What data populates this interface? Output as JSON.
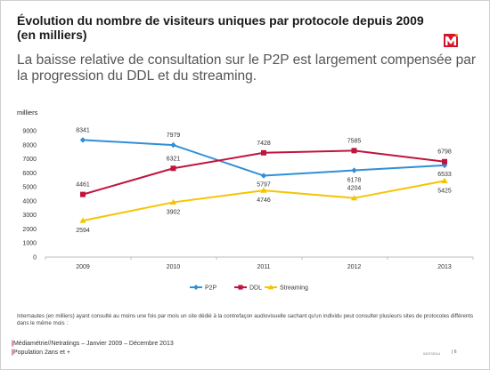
{
  "slide": {
    "title": "Évolution du nombre de visiteurs uniques par protocole depuis 2009 (en milliers)",
    "subtitle": "La baisse relative de consultation sur le P2P est largement compensée par la progression du DDL et du streaming.",
    "note": "Internautes (en milliers) ayant consulté au moins une fois par mois un site dédié à la contrefaçon audiovisuelle sachant qu'un individu peut consulter plusieurs sites de protocoles différents dans le même mois :",
    "source_line1": "Médiamétrie//Netratings – Janvier 2009 – Décembre 2013",
    "source_line2": "Population 2ans et +",
    "footer_code": "0207/2014",
    "page_number": "6",
    "colors": {
      "accent": "#c0143c"
    }
  },
  "chart_data": {
    "type": "line",
    "ylabel": "milliers",
    "categories": [
      "2009",
      "2010",
      "2011",
      "2012",
      "2013"
    ],
    "ylim": [
      0,
      9000
    ],
    "yticks": [
      0,
      1000,
      2000,
      3000,
      4000,
      5000,
      6000,
      7000,
      8000,
      9000
    ],
    "grid": false,
    "legend_position": "bottom",
    "series": [
      {
        "name": "P2P",
        "color": "#2f8fd8",
        "marker": "diamond",
        "values": [
          8341,
          7979,
          5797,
          6178,
          6533
        ]
      },
      {
        "name": "DDL",
        "color": "#c0143c",
        "marker": "square",
        "values": [
          4461,
          6321,
          7428,
          7585,
          6798
        ]
      },
      {
        "name": "Streaming",
        "color": "#f5c400",
        "marker": "triangle",
        "values": [
          2594,
          3902,
          4746,
          4204,
          5425
        ]
      }
    ]
  }
}
